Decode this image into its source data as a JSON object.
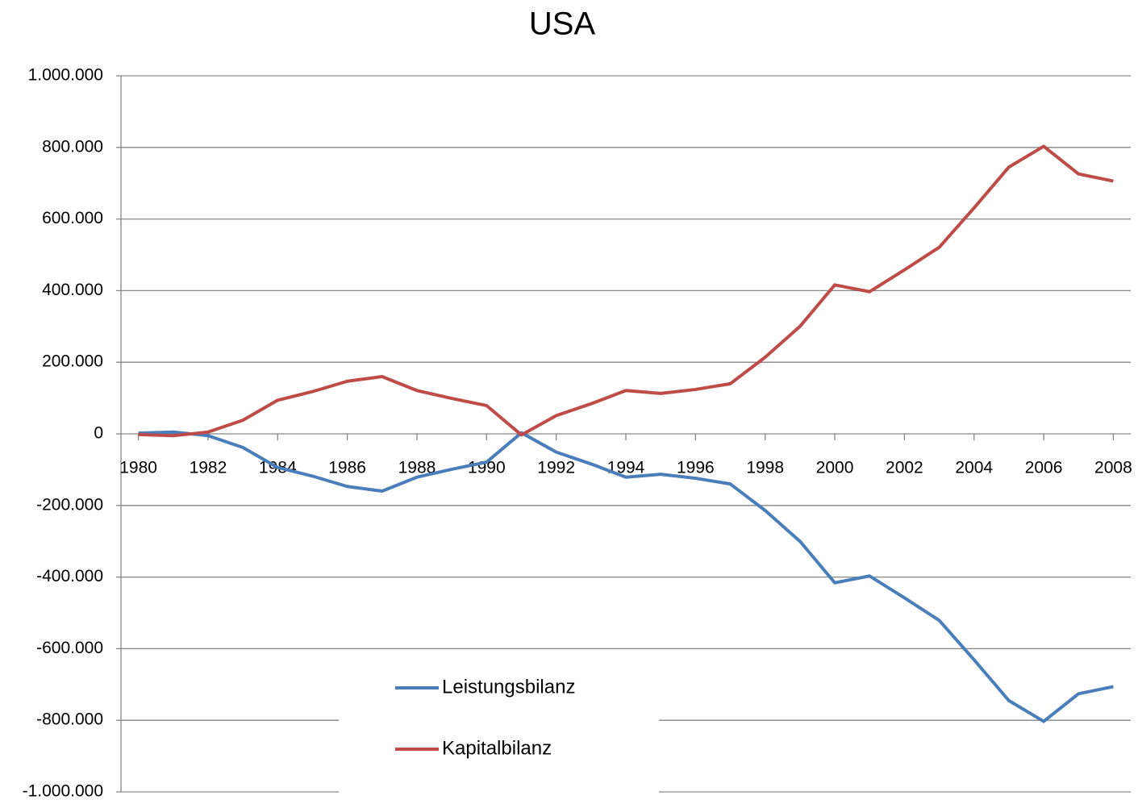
{
  "chart_data": {
    "type": "line",
    "title": "USA",
    "x": [
      1980,
      1981,
      1982,
      1983,
      1984,
      1985,
      1986,
      1987,
      1988,
      1989,
      1990,
      1991,
      1992,
      1993,
      1994,
      1995,
      1996,
      1997,
      1998,
      1999,
      2000,
      2001,
      2002,
      2003,
      2004,
      2005,
      2006,
      2007,
      2008
    ],
    "series": [
      {
        "name": "Leistungsbilanz",
        "color": "#4a7ebb",
        "values": [
          2000,
          5000,
          -5000,
          -38000,
          -94000,
          -118000,
          -147000,
          -160000,
          -121000,
          -99000,
          -79000,
          3000,
          -51000,
          -84000,
          -121000,
          -113000,
          -124000,
          -140000,
          -214000,
          -300000,
          -416000,
          -397000,
          -458000,
          -521000,
          -631000,
          -745000,
          -803000,
          -726000,
          -706000
        ]
      },
      {
        "name": "Kapitalbilanz",
        "color": "#be4b48",
        "values": [
          -2000,
          -5000,
          5000,
          38000,
          94000,
          118000,
          147000,
          160000,
          121000,
          99000,
          79000,
          -3000,
          51000,
          84000,
          121000,
          113000,
          124000,
          140000,
          214000,
          300000,
          416000,
          397000,
          458000,
          521000,
          631000,
          745000,
          803000,
          726000,
          706000
        ]
      }
    ],
    "xlim": [
      1979.5,
      2008.5
    ],
    "xticks": [
      1980,
      1982,
      1984,
      1986,
      1988,
      1990,
      1992,
      1994,
      1996,
      1998,
      2000,
      2002,
      2004,
      2006,
      2008
    ],
    "ylim": [
      -1000000,
      1000000
    ],
    "yticks": [
      {
        "value": -1000000,
        "label": "-1.000.000"
      },
      {
        "value": -800000,
        "label": "-800.000"
      },
      {
        "value": -600000,
        "label": "-600.000"
      },
      {
        "value": -400000,
        "label": "-400.000"
      },
      {
        "value": -200000,
        "label": "-200.000"
      },
      0,
      {
        "value": 200000,
        "label": "200.000"
      },
      {
        "value": 400000,
        "label": "400.000"
      },
      {
        "value": 600000,
        "label": "600.000"
      },
      {
        "value": 800000,
        "label": "800.000"
      },
      {
        "value": 1000000,
        "label": "1.000.000"
      }
    ],
    "grid": true,
    "legend": "bottom"
  }
}
